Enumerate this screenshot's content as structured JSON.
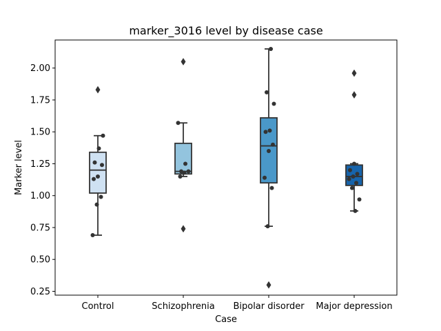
{
  "chart_data": {
    "type": "box",
    "title": "marker_3016 level by disease case",
    "xlabel": "Case",
    "ylabel": "Marker level",
    "categories": [
      "Control",
      "Schizophrenia",
      "Bipolar disorder",
      "Major depression"
    ],
    "ylim": [
      0.22,
      2.22
    ],
    "yticks": [
      "0.25",
      "0.50",
      "0.75",
      "1.00",
      "1.25",
      "1.50",
      "1.75",
      "2.00"
    ],
    "grid": false,
    "legend": "none",
    "box_colors": [
      "#cfe1f2",
      "#93c4de",
      "#4a98c9",
      "#1764ab"
    ],
    "line_color": "#333333",
    "boxes": [
      {
        "category": "Control",
        "q1": 1.02,
        "median": 1.2,
        "q3": 1.34,
        "whisker_low": 0.69,
        "whisker_high": 1.47,
        "outliers": [
          1.83
        ],
        "points": [
          0.69,
          0.93,
          0.99,
          1.13,
          1.15,
          1.24,
          1.26,
          1.37,
          1.47
        ]
      },
      {
        "category": "Schizophrenia",
        "q1": 1.17,
        "median": 1.19,
        "q3": 1.41,
        "whisker_low": 1.15,
        "whisker_high": 1.57,
        "outliers": [
          2.05,
          0.74
        ],
        "points": [
          1.15,
          1.18,
          1.19,
          1.19,
          1.25,
          1.57
        ]
      },
      {
        "category": "Bipolar disorder",
        "q1": 1.1,
        "median": 1.39,
        "q3": 1.61,
        "whisker_low": 0.76,
        "whisker_high": 2.15,
        "outliers": [
          0.3
        ],
        "points": [
          0.76,
          1.06,
          1.14,
          1.35,
          1.4,
          1.5,
          1.51,
          1.72,
          1.81,
          2.15
        ]
      },
      {
        "category": "Major depression",
        "q1": 1.08,
        "median": 1.15,
        "q3": 1.24,
        "whisker_low": 0.88,
        "whisker_high": 1.25,
        "outliers": [
          1.96,
          1.79
        ],
        "points": [
          0.88,
          0.97,
          1.06,
          1.1,
          1.13,
          1.15,
          1.17,
          1.2,
          1.25
        ]
      }
    ]
  }
}
